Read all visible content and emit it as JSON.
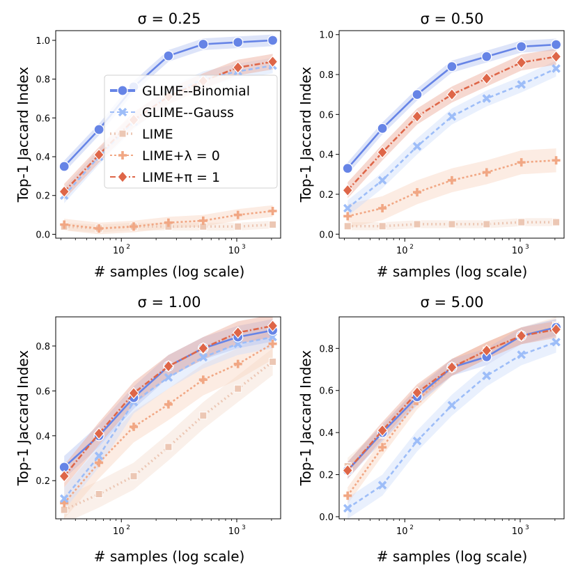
{
  "chart_data": [
    {
      "type": "line",
      "title": "σ = 0.25",
      "xlabel": "# samples (log scale)",
      "ylabel": "Top-1 Jaccard Index",
      "xscale": "log",
      "xlim": [
        27,
        2400
      ],
      "ylim": [
        -0.02,
        1.05
      ],
      "yticks": [
        0.0,
        0.2,
        0.4,
        0.6,
        0.8,
        1.0
      ],
      "ytick_labels": [
        "0.0",
        "0.2",
        "0.4",
        "0.6",
        "0.8",
        "1.0"
      ],
      "xticks": [
        100,
        1000
      ],
      "xtick_labels": [
        "10",
        "10"
      ],
      "xtick_exponent": "2|3",
      "legend_position": "center-right",
      "x": [
        32,
        64,
        128,
        256,
        512,
        1024,
        2048
      ],
      "series": [
        {
          "key": "glime_binomial",
          "name": "GLIME--Binomial",
          "values": [
            0.35,
            0.54,
            0.76,
            0.92,
            0.98,
            0.99,
            1.0
          ],
          "band": 0.03
        },
        {
          "key": "glime_gauss",
          "name": "GLIME--Gauss",
          "values": [
            0.2,
            0.4,
            0.58,
            0.72,
            0.8,
            0.84,
            0.87
          ],
          "band": 0.04
        },
        {
          "key": "lime",
          "name": "LIME",
          "values": [
            0.04,
            0.03,
            0.04,
            0.04,
            0.04,
            0.04,
            0.05
          ],
          "band": 0.02
        },
        {
          "key": "lime_lambda",
          "name": "LIME+λ = 0",
          "values": [
            0.05,
            0.03,
            0.04,
            0.06,
            0.07,
            0.1,
            0.12
          ],
          "band": 0.03
        },
        {
          "key": "lime_pi",
          "name": "LIME+π = 1",
          "values": [
            0.22,
            0.41,
            0.59,
            0.71,
            0.79,
            0.86,
            0.89
          ],
          "band": 0.04
        }
      ]
    },
    {
      "type": "line",
      "title": "σ = 0.50",
      "xlabel": "# samples (log scale)",
      "ylabel": "Top-1 Jaccard Index",
      "xscale": "log",
      "xlim": [
        27,
        2400
      ],
      "ylim": [
        -0.02,
        1.02
      ],
      "yticks": [
        0.0,
        0.2,
        0.4,
        0.6,
        0.8,
        1.0
      ],
      "ytick_labels": [
        "0.0",
        "0.2",
        "0.4",
        "0.6",
        "0.8",
        "1.0"
      ],
      "xticks": [
        100,
        1000
      ],
      "xtick_labels": [
        "10",
        "10"
      ],
      "xtick_exponent": "2|3",
      "x": [
        32,
        64,
        128,
        256,
        512,
        1024,
        2048
      ],
      "series": [
        {
          "key": "glime_binomial",
          "name": "GLIME--Binomial",
          "values": [
            0.33,
            0.53,
            0.7,
            0.84,
            0.89,
            0.94,
            0.95
          ],
          "band": 0.03
        },
        {
          "key": "glime_gauss",
          "name": "GLIME--Gauss",
          "values": [
            0.13,
            0.27,
            0.44,
            0.59,
            0.68,
            0.75,
            0.83
          ],
          "band": 0.04
        },
        {
          "key": "lime",
          "name": "LIME",
          "values": [
            0.04,
            0.04,
            0.05,
            0.05,
            0.05,
            0.06,
            0.06
          ],
          "band": 0.02
        },
        {
          "key": "lime_lambda",
          "name": "LIME+λ = 0",
          "values": [
            0.09,
            0.13,
            0.21,
            0.27,
            0.31,
            0.36,
            0.37
          ],
          "band": 0.06
        },
        {
          "key": "lime_pi",
          "name": "LIME+π = 1",
          "values": [
            0.22,
            0.41,
            0.59,
            0.7,
            0.78,
            0.86,
            0.89
          ],
          "band": 0.04
        }
      ]
    },
    {
      "type": "line",
      "title": "σ = 1.00",
      "xlabel": "# samples (log scale)",
      "ylabel": "Top-1 Jaccard Index",
      "xscale": "log",
      "xlim": [
        27,
        2400
      ],
      "ylim": [
        0.03,
        0.93
      ],
      "yticks": [
        0.2,
        0.4,
        0.6,
        0.8
      ],
      "ytick_labels": [
        "0.2",
        "0.4",
        "0.6",
        "0.8"
      ],
      "xticks": [
        100,
        1000
      ],
      "xtick_labels": [
        "10",
        "10"
      ],
      "xtick_exponent": "2|3",
      "x": [
        32,
        64,
        128,
        256,
        512,
        1024,
        2048
      ],
      "series": [
        {
          "key": "glime_binomial",
          "name": "GLIME--Binomial",
          "values": [
            0.26,
            0.4,
            0.57,
            0.71,
            0.79,
            0.84,
            0.87
          ],
          "band": 0.05
        },
        {
          "key": "glime_gauss",
          "name": "GLIME--Gauss",
          "values": [
            0.12,
            0.31,
            0.55,
            0.66,
            0.75,
            0.81,
            0.84
          ],
          "band": 0.05
        },
        {
          "key": "lime",
          "name": "LIME",
          "values": [
            0.07,
            0.14,
            0.22,
            0.35,
            0.49,
            0.61,
            0.73
          ],
          "band": 0.06
        },
        {
          "key": "lime_lambda",
          "name": "LIME+λ = 0",
          "values": [
            0.1,
            0.28,
            0.44,
            0.54,
            0.65,
            0.72,
            0.81
          ],
          "band": 0.07
        },
        {
          "key": "lime_pi",
          "name": "LIME+π = 1",
          "values": [
            0.22,
            0.41,
            0.59,
            0.71,
            0.79,
            0.86,
            0.89
          ],
          "band": 0.05
        }
      ]
    },
    {
      "type": "line",
      "title": "σ = 5.00",
      "xlabel": "# samples (log scale)",
      "ylabel": "Top-1 Jaccard Index",
      "xscale": "log",
      "xlim": [
        27,
        2400
      ],
      "ylim": [
        -0.01,
        0.95
      ],
      "yticks": [
        0.0,
        0.2,
        0.4,
        0.6,
        0.8
      ],
      "ytick_labels": [
        "0.0",
        "0.2",
        "0.4",
        "0.6",
        "0.8"
      ],
      "xticks": [
        100,
        1000
      ],
      "xtick_labels": [
        "10",
        "10"
      ],
      "xtick_exponent": "2|3",
      "x": [
        32,
        64,
        128,
        256,
        512,
        1024,
        2048
      ],
      "series": [
        {
          "key": "glime_binomial",
          "name": "GLIME--Binomial",
          "values": [
            0.22,
            0.4,
            0.57,
            0.71,
            0.76,
            0.86,
            0.9
          ],
          "band": 0.04
        },
        {
          "key": "glime_gauss",
          "name": "GLIME--Gauss",
          "values": [
            0.04,
            0.15,
            0.36,
            0.53,
            0.67,
            0.77,
            0.83
          ],
          "band": 0.05
        },
        {
          "key": "lime",
          "name": "LIME",
          "values": [
            0.24,
            0.39,
            0.58,
            0.71,
            0.79,
            0.86,
            0.91
          ],
          "band": 0.04
        },
        {
          "key": "lime_lambda",
          "name": "LIME+λ = 0",
          "values": [
            0.1,
            0.33,
            0.55,
            0.71,
            0.79,
            0.86,
            0.9
          ],
          "band": 0.04
        },
        {
          "key": "lime_pi",
          "name": "LIME+π = 1",
          "values": [
            0.22,
            0.41,
            0.59,
            0.71,
            0.79,
            0.86,
            0.89
          ],
          "band": 0.04
        }
      ]
    }
  ],
  "styles": {
    "glime_binomial": {
      "color": "#6684e6",
      "band": "#b4c4f2",
      "dash": "",
      "marker": "circle"
    },
    "glime_gauss": {
      "color": "#9dbdf8",
      "band": "#cfdefb",
      "dash": "6,4",
      "marker": "x"
    },
    "lime": {
      "color": "#ecc7b4",
      "band": "#f5ddd0",
      "dash": "2,4",
      "marker": "square"
    },
    "lime_lambda": {
      "color": "#f1a784",
      "band": "#f8d4c2",
      "dash": "3,3",
      "marker": "plus"
    },
    "lime_pi": {
      "color": "#de6648",
      "band": "#eba996",
      "dash": "8,3,2,3",
      "marker": "diamond"
    }
  }
}
